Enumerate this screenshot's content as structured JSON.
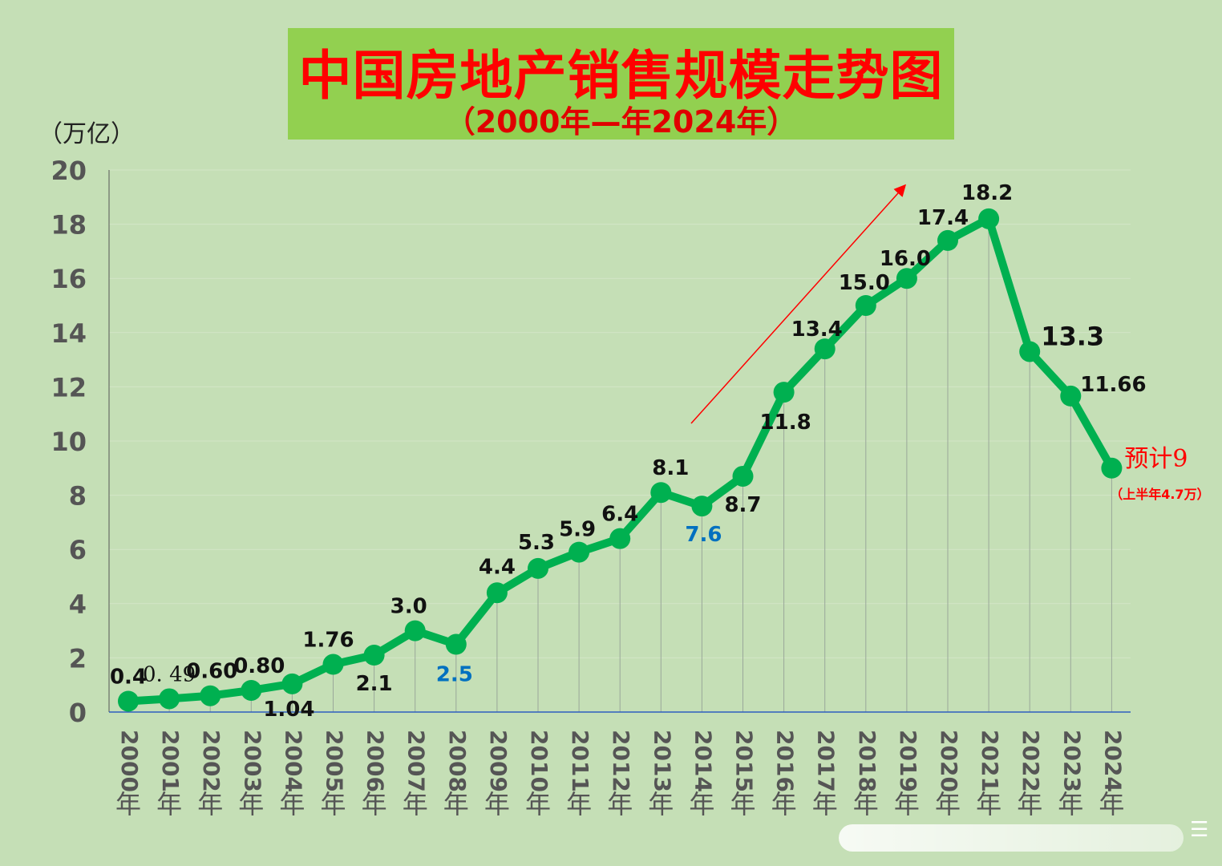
{
  "title": {
    "main": "中国房地产销售规模走势图",
    "sub": "（2000年—年2024年）"
  },
  "unit_label": "（万亿）",
  "colors": {
    "background": "#c5dfb6",
    "title_box": "#92d050",
    "title_text": "#ff0000",
    "line": "#00b050",
    "label": "#111111",
    "label_highlight": "#0070c0",
    "forecast": "#ff0000",
    "trend_arrow": "#ff0000"
  },
  "chart_data": {
    "type": "line",
    "categories": [
      "2000年",
      "2001年",
      "2002年",
      "2003年",
      "2004年",
      "2005年",
      "2006年",
      "2007年",
      "2008年",
      "2009年",
      "2010年",
      "2011年",
      "2012年",
      "2013年",
      "2014年",
      "2015年",
      "2016年",
      "2017年",
      "2018年",
      "2019年",
      "2020年",
      "2021年",
      "2022年",
      "2023年",
      "2024年"
    ],
    "values": [
      0.4,
      0.49,
      0.6,
      0.8,
      1.04,
      1.76,
      2.1,
      3.0,
      2.5,
      4.4,
      5.3,
      5.9,
      6.4,
      8.1,
      7.6,
      8.7,
      11.8,
      13.4,
      15.0,
      16.0,
      17.4,
      18.2,
      13.3,
      11.66,
      9
    ],
    "data_labels": [
      "0.4",
      "0. 49",
      "0.60",
      "0.80",
      "1.04",
      "1.76",
      "2.1",
      "3.0",
      "2.5",
      "4.4",
      "5.3",
      "5.9",
      "6.4",
      "8.1",
      "7.6",
      "8.7",
      "11.8",
      "13.4",
      "15.0",
      "16.0",
      "17.4",
      "18.2",
      "13.3",
      "11.66",
      "预计9"
    ],
    "forecast_note": "（上半年4.7万）",
    "ylim": [
      0,
      20
    ],
    "yticks": [
      0,
      2,
      4,
      6,
      8,
      10,
      12,
      14,
      16,
      18,
      20
    ],
    "grid": true,
    "legend": "none"
  }
}
